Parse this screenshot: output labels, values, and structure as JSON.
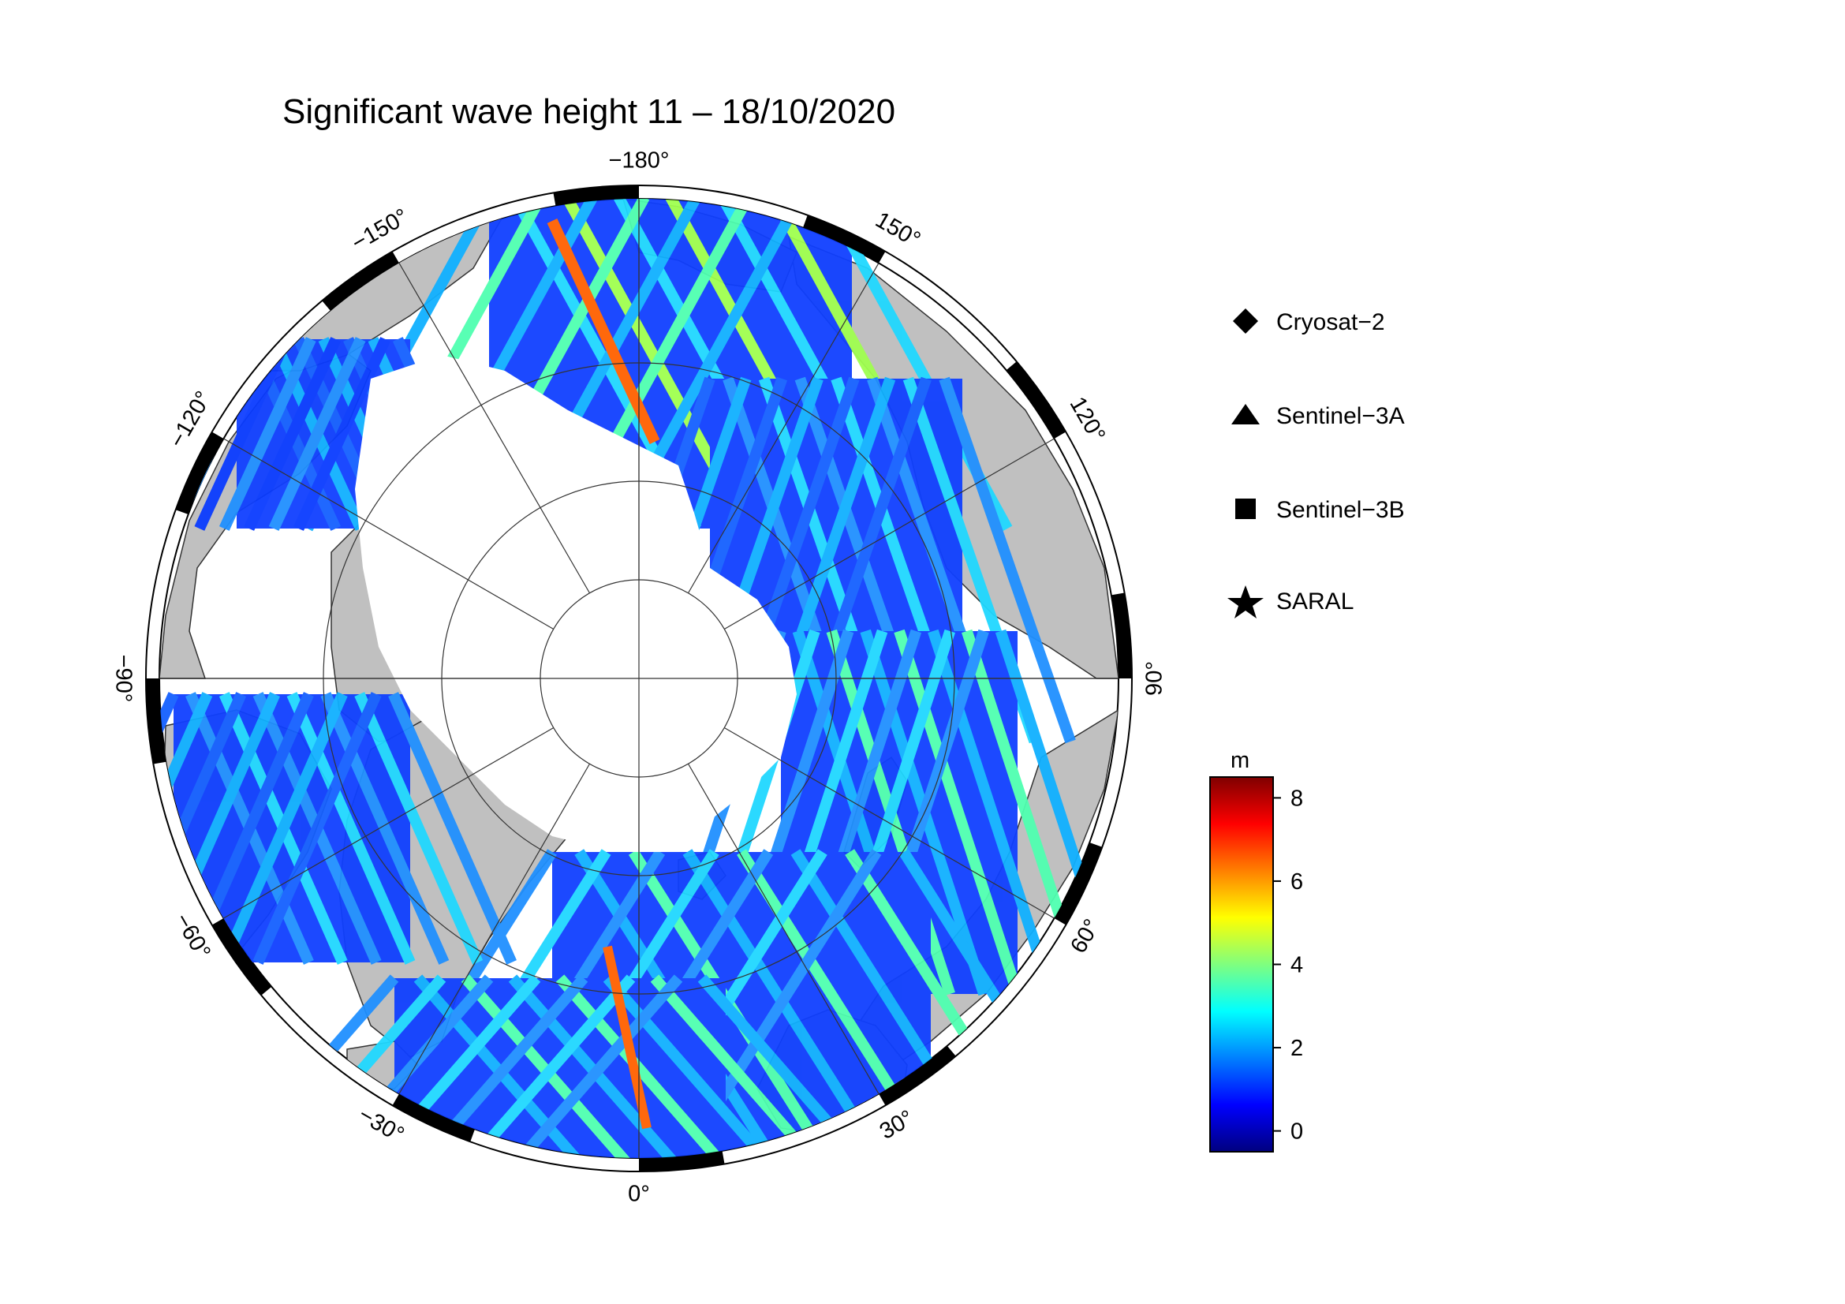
{
  "title": "Significant wave height 11 – 18/10/2020",
  "map": {
    "projection": "north-polar-stereographic",
    "center_longitude_bottom": 0,
    "land_color": "#c0c0c0",
    "ice_color": "#ffffff",
    "longitude_labels": [
      {
        "lon": 180,
        "text": "−180°"
      },
      {
        "lon": 150,
        "text": "150°"
      },
      {
        "lon": 120,
        "text": "120°"
      },
      {
        "lon": 90,
        "text": "90°"
      },
      {
        "lon": 60,
        "text": "60°"
      },
      {
        "lon": 30,
        "text": "30°"
      },
      {
        "lon": 0,
        "text": "0°"
      },
      {
        "lon": -30,
        "text": "−30°"
      },
      {
        "lon": -60,
        "text": "−60°"
      },
      {
        "lon": -90,
        "text": "−90°"
      },
      {
        "lon": -120,
        "text": "−120°"
      },
      {
        "lon": -150,
        "text": "−150°"
      }
    ]
  },
  "legend": {
    "items": [
      {
        "symbol": "diamond",
        "label": "Cryosat−2"
      },
      {
        "symbol": "triangle",
        "label": "Sentinel−3A"
      },
      {
        "symbol": "square",
        "label": "Sentinel−3B"
      },
      {
        "symbol": "star",
        "label": "SARAL"
      }
    ]
  },
  "colorbar": {
    "unit": "m",
    "min": -0.5,
    "max": 8.5,
    "ticks": [
      0,
      2,
      4,
      6,
      8
    ],
    "tick_labels": [
      "0",
      "2",
      "4",
      "6",
      "8"
    ],
    "colormap": "jet"
  }
}
